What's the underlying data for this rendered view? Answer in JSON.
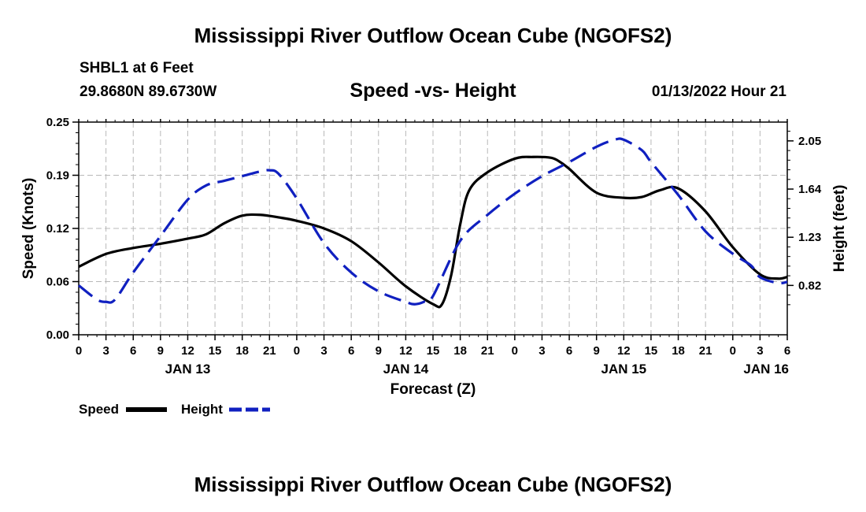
{
  "header": {
    "title": "Mississippi River Outflow Ocean Cube (NGOFS2)",
    "station": "SHBL1 at 6 Feet",
    "coords": "29.8680N  89.6730W",
    "subtitle": "Speed -vs- Height",
    "run": "01/13/2022 Hour 21"
  },
  "footer": {
    "title": "Mississippi River Outflow Ocean Cube (NGOFS2)"
  },
  "chart_data": {
    "type": "line",
    "title": "Speed -vs- Height",
    "xlabel": "Forecast (Z)",
    "ylabel": "Speed (Knots)",
    "y2label": "Height (feet)",
    "x_range_hours": [
      0,
      78
    ],
    "x_ticks": [
      {
        "h": 0,
        "label": "0"
      },
      {
        "h": 3,
        "label": "3"
      },
      {
        "h": 6,
        "label": "6"
      },
      {
        "h": 9,
        "label": "9"
      },
      {
        "h": 12,
        "label": "12"
      },
      {
        "h": 15,
        "label": "15"
      },
      {
        "h": 18,
        "label": "18"
      },
      {
        "h": 21,
        "label": "21"
      },
      {
        "h": 24,
        "label": "0"
      },
      {
        "h": 27,
        "label": "3"
      },
      {
        "h": 30,
        "label": "6"
      },
      {
        "h": 33,
        "label": "9"
      },
      {
        "h": 36,
        "label": "12"
      },
      {
        "h": 39,
        "label": "15"
      },
      {
        "h": 42,
        "label": "18"
      },
      {
        "h": 45,
        "label": "21"
      },
      {
        "h": 48,
        "label": "0"
      },
      {
        "h": 51,
        "label": "3"
      },
      {
        "h": 54,
        "label": "6"
      },
      {
        "h": 57,
        "label": "9"
      },
      {
        "h": 60,
        "label": "12"
      },
      {
        "h": 63,
        "label": "15"
      },
      {
        "h": 66,
        "label": "18"
      },
      {
        "h": 69,
        "label": "21"
      },
      {
        "h": 72,
        "label": "0"
      },
      {
        "h": 75,
        "label": "3"
      },
      {
        "h": 78,
        "label": "6"
      }
    ],
    "date_labels": [
      {
        "h": 12,
        "label": "JAN 13"
      },
      {
        "h": 36,
        "label": "JAN 14"
      },
      {
        "h": 60,
        "label": "JAN 15"
      },
      {
        "h": 78,
        "label": "JAN 16"
      }
    ],
    "y_left": {
      "range": [
        0,
        0.25
      ],
      "ticks": [
        {
          "v": 0,
          "label": "0.00"
        },
        {
          "v": 0.0625,
          "label": "0.06"
        },
        {
          "v": 0.125,
          "label": "0.12"
        },
        {
          "v": 0.1875,
          "label": "0.19"
        },
        {
          "v": 0.25,
          "label": "0.25"
        }
      ]
    },
    "y_right": {
      "range": [
        0.4,
        2.21
      ],
      "ticks": [
        {
          "v": 0.82,
          "label": "0.82"
        },
        {
          "v": 1.23,
          "label": "1.23"
        },
        {
          "v": 1.64,
          "label": "1.64"
        },
        {
          "v": 2.05,
          "label": "2.05"
        }
      ]
    },
    "series": [
      {
        "name": "Speed",
        "axis": "left",
        "color": "#000000",
        "dash": "solid",
        "x": [
          0,
          3,
          6,
          9,
          12,
          14,
          16,
          18,
          20,
          22,
          24,
          27,
          30,
          33,
          36,
          39,
          40,
          41,
          42,
          43,
          45,
          48,
          50,
          52,
          53,
          54,
          57,
          60,
          62,
          64,
          66,
          69,
          72,
          75,
          77,
          78
        ],
        "y": [
          0.08,
          0.095,
          0.102,
          0.107,
          0.113,
          0.118,
          0.131,
          0.14,
          0.141,
          0.138,
          0.134,
          0.125,
          0.11,
          0.085,
          0.057,
          0.036,
          0.036,
          0.07,
          0.13,
          0.17,
          0.191,
          0.207,
          0.209,
          0.208,
          0.203,
          0.195,
          0.167,
          0.161,
          0.162,
          0.17,
          0.172,
          0.145,
          0.103,
          0.071,
          0.066,
          0.068
        ]
      },
      {
        "name": "Height",
        "axis": "right",
        "color": "#1020c0",
        "dash": "dashed",
        "x": [
          0,
          2,
          3,
          4,
          6,
          9,
          12,
          14,
          16,
          18,
          20,
          21,
          22,
          24,
          27,
          30,
          33,
          36,
          37,
          38,
          39,
          42,
          45,
          48,
          51,
          54,
          57,
          59,
          60,
          62,
          63,
          66,
          69,
          72,
          74,
          75,
          77,
          78
        ],
        "y": [
          0.82,
          0.7,
          0.68,
          0.7,
          0.93,
          1.24,
          1.55,
          1.67,
          1.71,
          1.75,
          1.79,
          1.8,
          1.77,
          1.56,
          1.18,
          0.93,
          0.77,
          0.68,
          0.66,
          0.68,
          0.73,
          1.2,
          1.42,
          1.6,
          1.75,
          1.87,
          2.0,
          2.06,
          2.06,
          1.97,
          1.87,
          1.59,
          1.28,
          1.09,
          0.99,
          0.89,
          0.84,
          0.85
        ]
      }
    ],
    "legend": [
      {
        "name": "Speed",
        "color": "#000000",
        "dash": "solid"
      },
      {
        "name": "Height",
        "color": "#1020c0",
        "dash": "dashed"
      }
    ]
  }
}
